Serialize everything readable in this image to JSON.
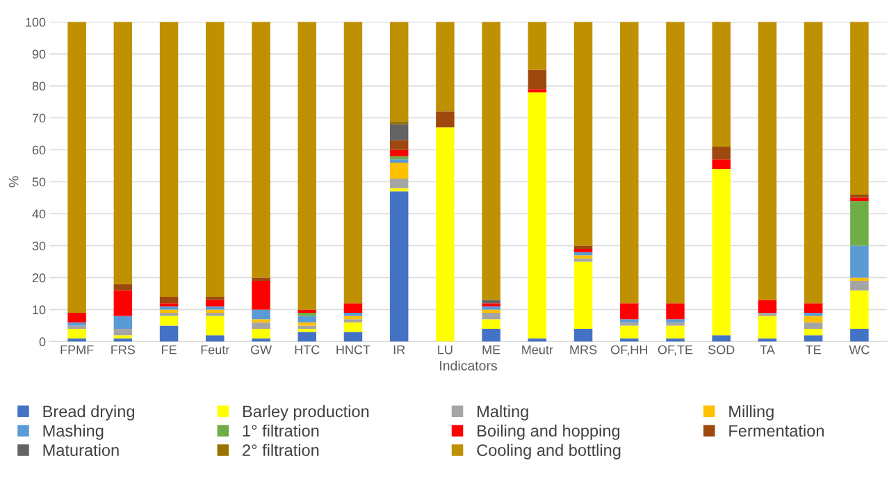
{
  "chart_data": {
    "type": "bar",
    "stacked": true,
    "xlabel": "Indicators",
    "ylabel": "%",
    "categories": [
      "FPMF",
      "FRS",
      "FE",
      "Feutr",
      "GW",
      "HTC",
      "HNCT",
      "IR",
      "LU",
      "ME",
      "Meutr",
      "MRS",
      "OF,HH",
      "OF,TE",
      "SOD",
      "TA",
      "TE",
      "WC"
    ],
    "series": [
      {
        "name": "Bread drying",
        "color": "#4472c4",
        "values": [
          1,
          1,
          5,
          2,
          1,
          3,
          3,
          47,
          0,
          4,
          1,
          4,
          1,
          1,
          2,
          1,
          2,
          4
        ]
      },
      {
        "name": "Barley production",
        "color": "#ffff00",
        "values": [
          3,
          1,
          3,
          6,
          3,
          1,
          3,
          1,
          67,
          3,
          77,
          21,
          4,
          4,
          52,
          7,
          2,
          12
        ]
      },
      {
        "name": "Malting",
        "color": "#a5a5a5",
        "values": [
          1,
          2,
          1,
          1,
          2,
          1,
          1,
          3,
          0,
          2,
          0,
          1,
          1,
          1,
          0,
          1,
          2,
          3
        ]
      },
      {
        "name": "Milling",
        "color": "#ffc000",
        "values": [
          0,
          0,
          1,
          1,
          1,
          1,
          1,
          5,
          0,
          1,
          0,
          1,
          0,
          0,
          0,
          0,
          2,
          1
        ]
      },
      {
        "name": "Mashing",
        "color": "#5b9bd5",
        "values": [
          1,
          4,
          1,
          1,
          3,
          2,
          1,
          1,
          0,
          1,
          0,
          1,
          1,
          1,
          0,
          0,
          1,
          10
        ]
      },
      {
        "name": "1° filtration",
        "color": "#70ad47",
        "values": [
          0,
          0,
          0,
          0,
          0,
          1,
          0,
          1,
          0,
          0,
          0,
          0,
          0,
          0,
          0,
          0,
          0,
          14
        ]
      },
      {
        "name": "Boiling and hopping",
        "color": "#ff0000",
        "values": [
          3,
          8,
          1,
          2,
          9,
          1,
          3,
          2,
          0,
          1,
          1,
          1,
          5,
          5,
          3,
          4,
          3,
          1
        ]
      },
      {
        "name": "Fermentation",
        "color": "#9e480e",
        "values": [
          0,
          2,
          2,
          1,
          1,
          0,
          0,
          3,
          5,
          0,
          6,
          1,
          0,
          0,
          4,
          0,
          0,
          1
        ]
      },
      {
        "name": "Maturation",
        "color": "#636363",
        "values": [
          0,
          0,
          0,
          0,
          0,
          0,
          0,
          5,
          0,
          1,
          0,
          0,
          0,
          0,
          0,
          0,
          0,
          0
        ]
      },
      {
        "name": "2° filtration",
        "color": "#997300",
        "values": [
          0,
          0,
          0,
          0,
          0,
          0,
          0,
          1,
          0,
          0,
          0,
          0,
          0,
          0,
          0,
          0,
          0,
          0
        ]
      },
      {
        "name": "Cooling and bottling",
        "color": "#bf9000",
        "values": [
          91,
          82,
          86,
          86,
          80,
          90,
          88,
          31,
          28,
          87,
          15,
          70,
          88,
          88,
          39,
          87,
          88,
          54
        ]
      }
    ],
    "ylim": [
      0,
      100
    ],
    "yticks": [
      0,
      10,
      20,
      30,
      40,
      50,
      60,
      70,
      80,
      90,
      100
    ],
    "grid": "y",
    "legend": "bottom"
  }
}
